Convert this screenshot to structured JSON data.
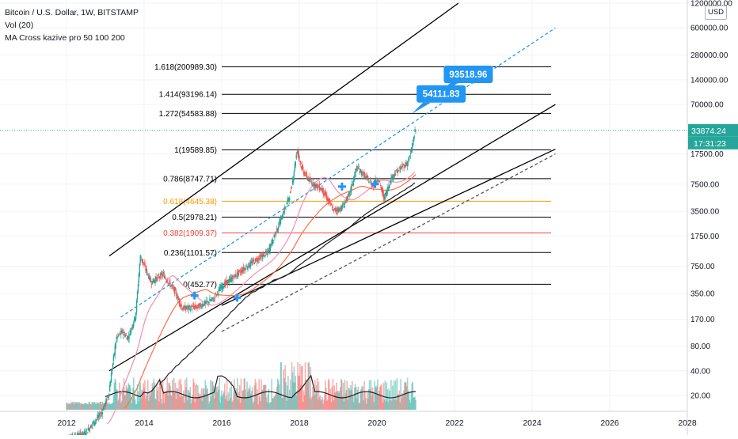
{
  "header": {
    "symbol_line": "Bitcoin / U.S. Dollar, 1W, BITSTAMP",
    "volume_indicator": "Vol (20)",
    "ma_indicator": "MA Cross kazive pro 50 100 200",
    "currency": "USD"
  },
  "colors": {
    "grid": "#f0f3fa",
    "up_candle": "#26a69a",
    "down_candle": "#ef5350",
    "channel": "#000000",
    "dashed_channel": "#2196f3",
    "callout": "#2196f3",
    "price_line": "#26a69a",
    "fib_line": "#000000",
    "fib_618": "#ff9800",
    "fib_382": "#f44336",
    "ma50": "#f48fb1",
    "ma100": "#ff7043",
    "ma200": "#212121"
  },
  "chart_data": {
    "type": "candlestick",
    "scale": "log",
    "x_ticks": [
      "2012",
      "2014",
      "2016",
      "2018",
      "2020",
      "2022",
      "2024",
      "2026",
      "2028"
    ],
    "y_ticks": [
      "1200000.00",
      "600000.00",
      "280000.00",
      "140000.00",
      "70000.00",
      "17500.00",
      "7500.00",
      "3500.00",
      "1750.00",
      "750.00",
      "350.00",
      "170.00",
      "80.00",
      "40.00",
      "20.00"
    ],
    "y_tick_values": [
      1200000,
      600000,
      280000,
      140000,
      70000,
      17500,
      7500,
      3500,
      1750,
      750,
      350,
      170,
      80,
      40,
      20
    ],
    "last_price": "33874.24",
    "last_price_value": 33874.24,
    "countdown": "17:31:23",
    "fib_levels": [
      {
        "label": "1.618(200989.30)",
        "value": 200989.3,
        "color": "#000000"
      },
      {
        "label": "1.414(93196.14)",
        "value": 93196.14,
        "color": "#000000"
      },
      {
        "label": "1.272(54583.88)",
        "value": 54583.88,
        "color": "#000000"
      },
      {
        "label": "1(19589.85)",
        "value": 19589.85,
        "color": "#000000"
      },
      {
        "label": "0.786(8747.71)",
        "value": 8747.71,
        "color": "#000000"
      },
      {
        "label": "0.618(4645.38)",
        "value": 4645.38,
        "color": "#ff9800"
      },
      {
        "label": "0.5(2978.21)",
        "value": 2978.21,
        "color": "#000000"
      },
      {
        "label": "0.382(1909.37)",
        "value": 1909.37,
        "color": "#f44336"
      },
      {
        "label": "0.236(1101.57)",
        "value": 1101.57,
        "color": "#000000"
      },
      {
        "label": "0(452.77)",
        "value": 452.77,
        "color": "#000000"
      }
    ],
    "callouts": [
      {
        "label": "54111.83",
        "value": 54111.83,
        "date": "2020.9"
      },
      {
        "label": "93518.96",
        "value": 93518.96,
        "date": "2021.6"
      }
    ],
    "price_series": [
      {
        "date": 2012.0,
        "price": 6
      },
      {
        "date": 2012.5,
        "price": 7
      },
      {
        "date": 2012.9,
        "price": 12
      },
      {
        "date": 2013.1,
        "price": 20
      },
      {
        "date": 2013.3,
        "price": 100
      },
      {
        "date": 2013.45,
        "price": 120
      },
      {
        "date": 2013.6,
        "price": 100
      },
      {
        "date": 2013.8,
        "price": 190
      },
      {
        "date": 2013.92,
        "price": 1000
      },
      {
        "date": 2014.0,
        "price": 800
      },
      {
        "date": 2014.2,
        "price": 480
      },
      {
        "date": 2014.5,
        "price": 600
      },
      {
        "date": 2014.8,
        "price": 380
      },
      {
        "date": 2015.0,
        "price": 230
      },
      {
        "date": 2015.4,
        "price": 240
      },
      {
        "date": 2015.8,
        "price": 300
      },
      {
        "date": 2016.0,
        "price": 420
      },
      {
        "date": 2016.5,
        "price": 650
      },
      {
        "date": 2016.9,
        "price": 900
      },
      {
        "date": 2017.2,
        "price": 1100
      },
      {
        "date": 2017.5,
        "price": 2500
      },
      {
        "date": 2017.8,
        "price": 6000
      },
      {
        "date": 2017.96,
        "price": 19500
      },
      {
        "date": 2018.1,
        "price": 11000
      },
      {
        "date": 2018.3,
        "price": 8000
      },
      {
        "date": 2018.6,
        "price": 6500
      },
      {
        "date": 2018.9,
        "price": 3600
      },
      {
        "date": 2019.1,
        "price": 3800
      },
      {
        "date": 2019.3,
        "price": 5500
      },
      {
        "date": 2019.5,
        "price": 12000
      },
      {
        "date": 2019.7,
        "price": 9500
      },
      {
        "date": 2019.9,
        "price": 7300
      },
      {
        "date": 2020.05,
        "price": 9000
      },
      {
        "date": 2020.2,
        "price": 5000
      },
      {
        "date": 2020.4,
        "price": 9200
      },
      {
        "date": 2020.6,
        "price": 11500
      },
      {
        "date": 2020.8,
        "price": 13500
      },
      {
        "date": 2020.9,
        "price": 18500
      },
      {
        "date": 2021.0,
        "price": 33874
      }
    ]
  }
}
